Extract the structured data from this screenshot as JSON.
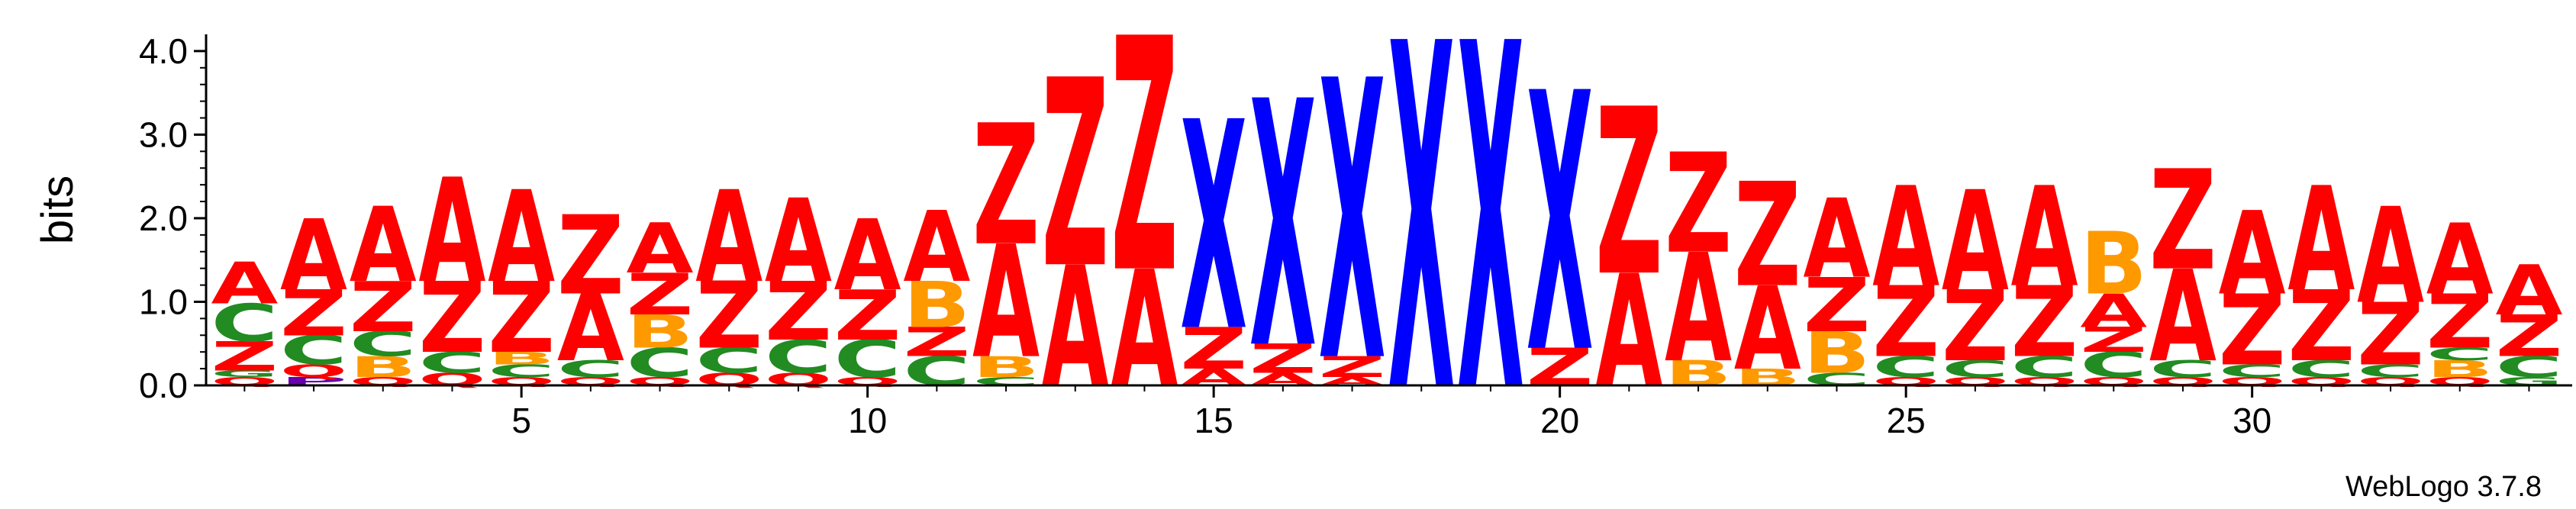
{
  "chart_data": {
    "type": "sequence-logo",
    "ylabel": "bits",
    "ylim": [
      0,
      4.2
    ],
    "yticks": [
      "0.0",
      "1.0",
      "2.0",
      "3.0",
      "4.0"
    ],
    "xticks": [
      5,
      10,
      15,
      20,
      25,
      30
    ],
    "xlim": [
      0.5,
      34.5
    ],
    "credit": "WebLogo 3.7.8",
    "colors": {
      "A": "#ff0000",
      "Z": "#ff0000",
      "X": "#0000ff",
      "B": "#ff9900",
      "C": "#228b22",
      "Q": "#ff0000",
      "P": "#6600aa",
      "G": "#228b22"
    },
    "positions": [
      {
        "pos": 1,
        "stack": [
          [
            "Q",
            0.1
          ],
          [
            "G",
            0.08
          ],
          [
            "Z",
            0.35
          ],
          [
            "C",
            0.45
          ],
          [
            "A",
            0.5
          ]
        ]
      },
      {
        "pos": 2,
        "stack": [
          [
            "P",
            0.1
          ],
          [
            "Q",
            0.15
          ],
          [
            "C",
            0.35
          ],
          [
            "Z",
            0.55
          ],
          [
            "A",
            0.85
          ]
        ]
      },
      {
        "pos": 3,
        "stack": [
          [
            "Q",
            0.1
          ],
          [
            "B",
            0.25
          ],
          [
            "C",
            0.3
          ],
          [
            "Z",
            0.6
          ],
          [
            "A",
            0.9
          ]
        ]
      },
      {
        "pos": 4,
        "stack": [
          [
            "Q",
            0.15
          ],
          [
            "C",
            0.25
          ],
          [
            "Z",
            0.85
          ],
          [
            "A",
            1.25
          ]
        ]
      },
      {
        "pos": 5,
        "stack": [
          [
            "Q",
            0.1
          ],
          [
            "C",
            0.15
          ],
          [
            "B",
            0.15
          ],
          [
            "Z",
            0.85
          ],
          [
            "A",
            1.1
          ]
        ]
      },
      {
        "pos": 6,
        "stack": [
          [
            "Q",
            0.1
          ],
          [
            "C",
            0.2
          ],
          [
            "A",
            0.8
          ],
          [
            "Z",
            0.95
          ]
        ]
      },
      {
        "pos": 7,
        "stack": [
          [
            "Q",
            0.1
          ],
          [
            "C",
            0.35
          ],
          [
            "B",
            0.4
          ],
          [
            "Z",
            0.5
          ],
          [
            "A",
            0.6
          ]
        ]
      },
      {
        "pos": 8,
        "stack": [
          [
            "Q",
            0.15
          ],
          [
            "C",
            0.3
          ],
          [
            "Z",
            0.8
          ],
          [
            "A",
            1.1
          ]
        ]
      },
      {
        "pos": 9,
        "stack": [
          [
            "Q",
            0.15
          ],
          [
            "C",
            0.4
          ],
          [
            "Z",
            0.7
          ],
          [
            "A",
            1.0
          ]
        ]
      },
      {
        "pos": 10,
        "stack": [
          [
            "Q",
            0.1
          ],
          [
            "C",
            0.45
          ],
          [
            "Z",
            0.6
          ],
          [
            "A",
            0.85
          ]
        ]
      },
      {
        "pos": 11,
        "stack": [
          [
            "C",
            0.35
          ],
          [
            "Z",
            0.35
          ],
          [
            "B",
            0.55
          ],
          [
            "A",
            0.85
          ]
        ]
      },
      {
        "pos": 12,
        "stack": [
          [
            "C",
            0.1
          ],
          [
            "B",
            0.25
          ],
          [
            "A",
            1.35
          ],
          [
            "Z",
            1.45
          ]
        ]
      },
      {
        "pos": 13,
        "stack": [
          [
            "A",
            1.45
          ],
          [
            "Z",
            2.25
          ]
        ]
      },
      {
        "pos": 14,
        "stack": [
          [
            "A",
            1.4
          ],
          [
            "Z",
            2.8
          ]
        ]
      },
      {
        "pos": 15,
        "stack": [
          [
            "A",
            0.2
          ],
          [
            "Z",
            0.5
          ],
          [
            "X",
            2.5
          ]
        ]
      },
      {
        "pos": 16,
        "stack": [
          [
            "A",
            0.15
          ],
          [
            "Z",
            0.35
          ],
          [
            "X",
            2.95
          ]
        ]
      },
      {
        "pos": 17,
        "stack": [
          [
            "A",
            0.1
          ],
          [
            "Z",
            0.25
          ],
          [
            "X",
            3.35
          ]
        ]
      },
      {
        "pos": 18,
        "stack": [
          [
            "X",
            4.15
          ]
        ]
      },
      {
        "pos": 19,
        "stack": [
          [
            "X",
            4.15
          ]
        ]
      },
      {
        "pos": 20,
        "stack": [
          [
            "Z",
            0.45
          ],
          [
            "X",
            3.1
          ]
        ]
      },
      {
        "pos": 21,
        "stack": [
          [
            "A",
            1.35
          ],
          [
            "Z",
            2.0
          ]
        ]
      },
      {
        "pos": 22,
        "stack": [
          [
            "B",
            0.3
          ],
          [
            "A",
            1.3
          ],
          [
            "Z",
            1.2
          ]
        ]
      },
      {
        "pos": 23,
        "stack": [
          [
            "B",
            0.2
          ],
          [
            "A",
            1.0
          ],
          [
            "Z",
            1.25
          ]
        ]
      },
      {
        "pos": 24,
        "stack": [
          [
            "C",
            0.15
          ],
          [
            "B",
            0.5
          ],
          [
            "Z",
            0.65
          ],
          [
            "A",
            0.95
          ]
        ]
      },
      {
        "pos": 25,
        "stack": [
          [
            "Q",
            0.1
          ],
          [
            "C",
            0.25
          ],
          [
            "Z",
            0.85
          ],
          [
            "A",
            1.2
          ]
        ]
      },
      {
        "pos": 26,
        "stack": [
          [
            "Q",
            0.1
          ],
          [
            "C",
            0.2
          ],
          [
            "Z",
            0.85
          ],
          [
            "A",
            1.2
          ]
        ]
      },
      {
        "pos": 27,
        "stack": [
          [
            "Q",
            0.1
          ],
          [
            "C",
            0.25
          ],
          [
            "Z",
            0.85
          ],
          [
            "A",
            1.2
          ]
        ]
      },
      {
        "pos": 28,
        "stack": [
          [
            "Q",
            0.1
          ],
          [
            "C",
            0.3
          ],
          [
            "Z",
            0.3
          ],
          [
            "A",
            0.4
          ],
          [
            "B",
            0.75
          ]
        ]
      },
      {
        "pos": 29,
        "stack": [
          [
            "Q",
            0.1
          ],
          [
            "C",
            0.2
          ],
          [
            "A",
            1.1
          ],
          [
            "Z",
            1.2
          ]
        ]
      },
      {
        "pos": 30,
        "stack": [
          [
            "Q",
            0.1
          ],
          [
            "C",
            0.15
          ],
          [
            "Z",
            0.85
          ],
          [
            "A",
            1.0
          ]
        ]
      },
      {
        "pos": 31,
        "stack": [
          [
            "Q",
            0.1
          ],
          [
            "C",
            0.2
          ],
          [
            "Z",
            0.85
          ],
          [
            "A",
            1.25
          ]
        ]
      },
      {
        "pos": 32,
        "stack": [
          [
            "Q",
            0.1
          ],
          [
            "C",
            0.15
          ],
          [
            "Z",
            0.75
          ],
          [
            "A",
            1.15
          ]
        ]
      },
      {
        "pos": 33,
        "stack": [
          [
            "Q",
            0.1
          ],
          [
            "B",
            0.2
          ],
          [
            "C",
            0.15
          ],
          [
            "Z",
            0.65
          ],
          [
            "A",
            0.85
          ]
        ]
      },
      {
        "pos": 34,
        "stack": [
          [
            "G",
            0.1
          ],
          [
            "C",
            0.25
          ],
          [
            "Z",
            0.5
          ],
          [
            "A",
            0.6
          ]
        ]
      }
    ]
  }
}
